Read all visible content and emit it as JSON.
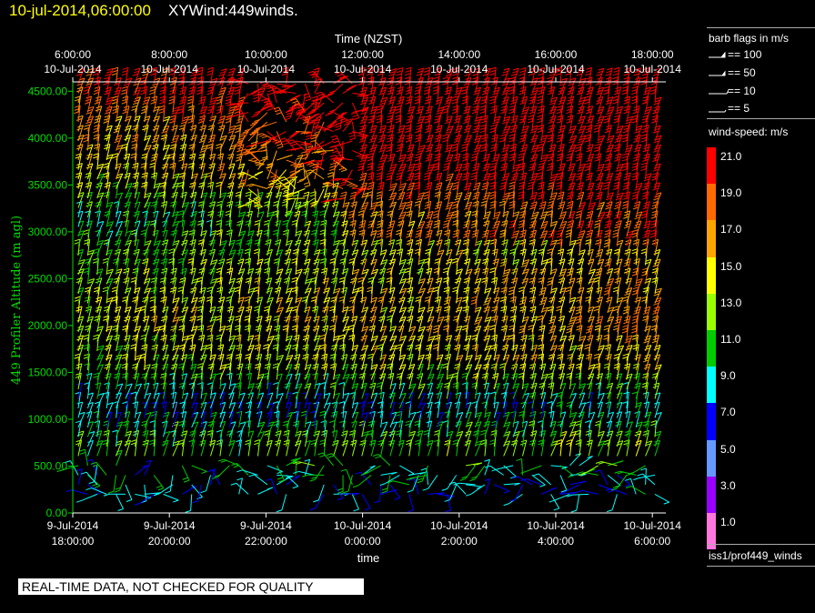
{
  "header": {
    "datetime": "10-jul-2014,06:00:00",
    "title": "XYWind:449winds."
  },
  "notice": "REAL-TIME DATA, NOT CHECKED FOR QUALITY",
  "legend": {
    "barb_title": "barb flags in m/s",
    "barb_flags": [
      "== 100",
      "== 50",
      "== 10",
      "== 5"
    ],
    "speed_title": "wind-speed: m/s",
    "speed_levels": [
      {
        "label": "21.0",
        "color": "#ff0000"
      },
      {
        "label": "19.0",
        "color": "#ff6a00"
      },
      {
        "label": "17.0",
        "color": "#ffa500"
      },
      {
        "label": "15.0",
        "color": "#ffff00"
      },
      {
        "label": "13.0",
        "color": "#99ff00"
      },
      {
        "label": "11.0",
        "color": "#00cc00"
      },
      {
        "label": "9.0",
        "color": "#00ffff"
      },
      {
        "label": "7.0",
        "color": "#0000ff"
      },
      {
        "label": "5.0",
        "color": "#6699ff"
      },
      {
        "label": "3.0",
        "color": "#9900ff"
      },
      {
        "label": "1.0",
        "color": "#ff77dd"
      }
    ],
    "source": "iss1/prof449_winds"
  },
  "chart_data": {
    "type": "wind-barb",
    "title": "",
    "xlabel": "time",
    "x2label": "Time (NZST)",
    "ylabel": "449 Profiler Altitude (m agl)",
    "ylim": [
      0,
      4600
    ],
    "y_ticks": [
      "0.00",
      "500.00",
      "1000.00",
      "1500.00",
      "2000.00",
      "2500.00",
      "3000.00",
      "3500.00",
      "4000.00",
      "4500.00"
    ],
    "x_ticks_bottom": [
      {
        "date": "9-Jul-2014",
        "time": "18:00:00"
      },
      {
        "date": "9-Jul-2014",
        "time": "20:00:00"
      },
      {
        "date": "9-Jul-2014",
        "time": "22:00:00"
      },
      {
        "date": "10-Jul-2014",
        "time": "0:00:00"
      },
      {
        "date": "10-Jul-2014",
        "time": "2:00:00"
      },
      {
        "date": "10-Jul-2014",
        "time": "4:00:00"
      },
      {
        "date": "10-Jul-2014",
        "time": "6:00:00"
      }
    ],
    "x_ticks_top": [
      {
        "time": "6:00:00",
        "date": "10-Jul-2014"
      },
      {
        "time": "8:00:00",
        "date": "10-Jul-2014"
      },
      {
        "time": "10:00:00",
        "date": "10-Jul-2014"
      },
      {
        "time": "12:00:00",
        "date": "10-Jul-2014"
      },
      {
        "time": "14:00:00",
        "date": "10-Jul-2014"
      },
      {
        "time": "16:00:00",
        "date": "10-Jul-2014"
      },
      {
        "time": "18:00:00",
        "date": "10-Jul-2014"
      }
    ],
    "speed_profile_levels": [
      {
        "altitude": 300,
        "speed": 8
      },
      {
        "altitude": 650,
        "speed": 12
      },
      {
        "altitude": 1050,
        "speed": 7
      },
      {
        "altitude": 1500,
        "speed": 13
      },
      {
        "altitude": 2000,
        "speed": 14
      },
      {
        "altitude": 2600,
        "speed": 12
      },
      {
        "altitude": 3100,
        "speed": 10
      },
      {
        "altitude": 3600,
        "speed": 15
      },
      {
        "altitude": 4100,
        "speed": 17
      },
      {
        "altitude": 4500,
        "speed": 20
      }
    ]
  }
}
